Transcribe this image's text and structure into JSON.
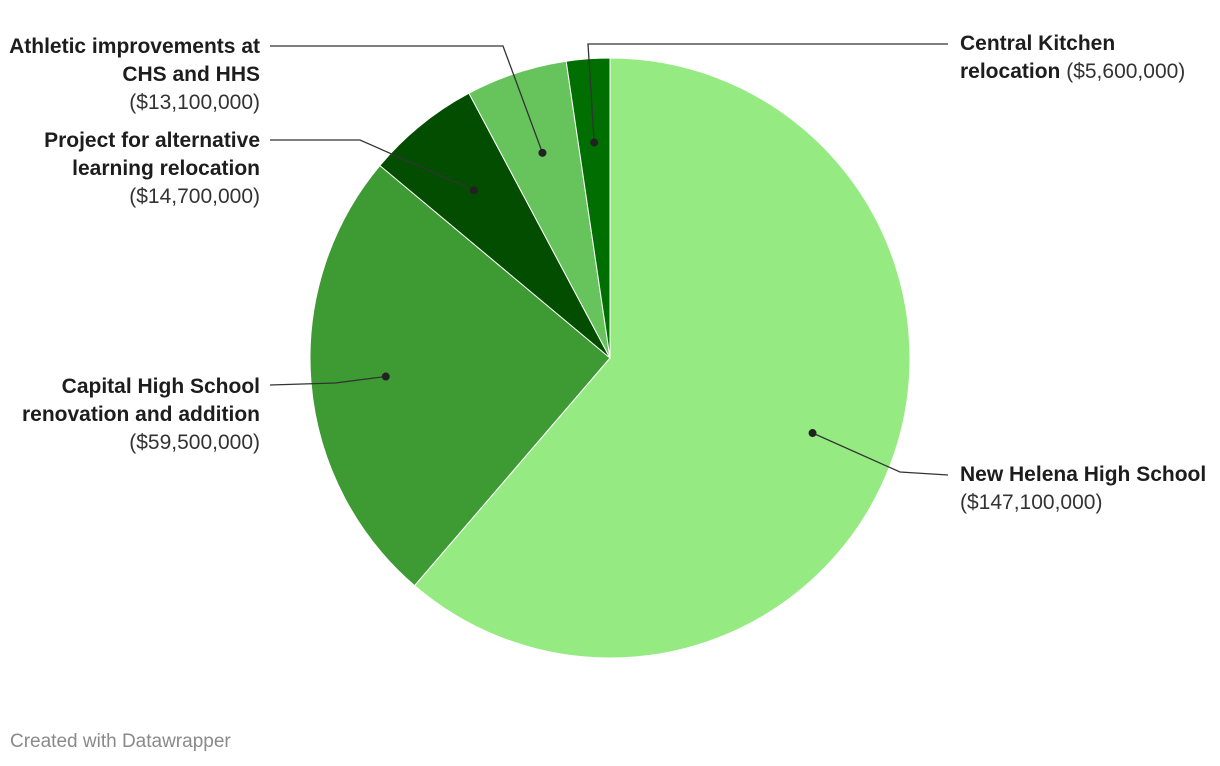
{
  "chart_data": {
    "type": "pie",
    "title": "",
    "slices": [
      {
        "label": "New Helena High School",
        "amount": "($147,100,000)",
        "value": 147100000,
        "color": "#95eb82"
      },
      {
        "label": "Capital High School renovation and addition",
        "amount": "($59,500,000)",
        "value": 59500000,
        "color": "#3e9a33"
      },
      {
        "label": "Project for alternative learning relocation",
        "amount": "($14,700,000)",
        "value": 14700000,
        "color": "#034d00"
      },
      {
        "label": "Athletic improvements at CHS and HHS",
        "amount": "($13,100,000)",
        "value": 13100000,
        "color": "#67c45c"
      },
      {
        "label": "Central Kitchen relocation",
        "amount": "($5,600,000)",
        "value": 5600000,
        "color": "#006e00"
      }
    ]
  },
  "footer": {
    "credit": "Created with Datawrapper"
  }
}
